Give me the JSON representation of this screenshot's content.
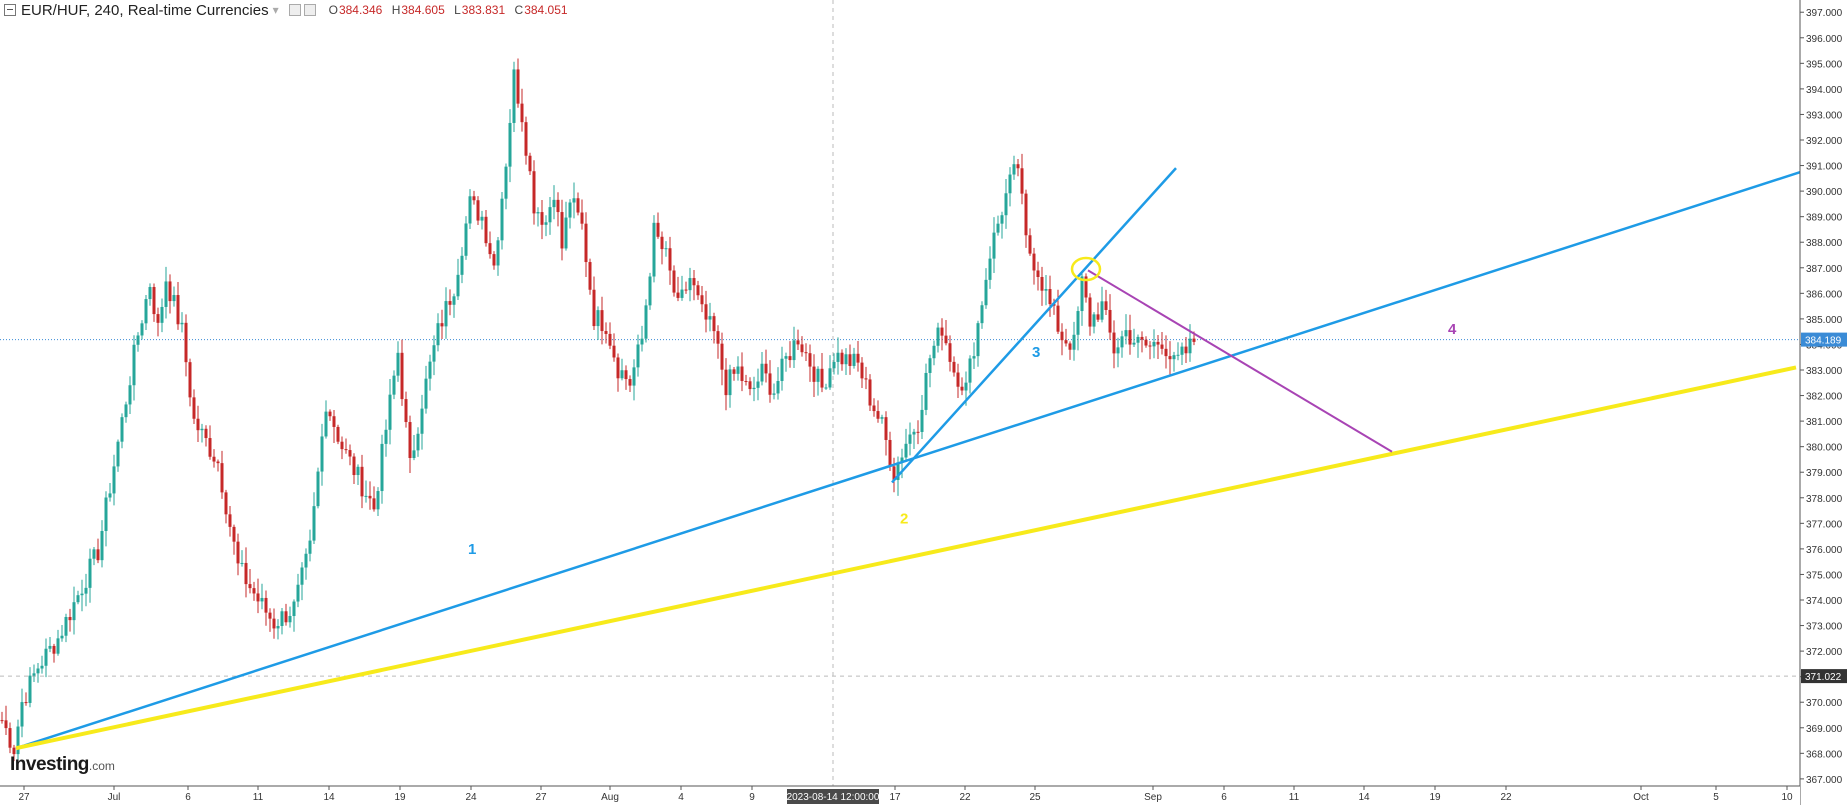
{
  "header": {
    "symbol_line": "EUR/HUF, 240, Real-time Currencies",
    "open_label": "O",
    "open": "384.346",
    "high_label": "H",
    "high": "384.605",
    "low_label": "L",
    "low": "383.831",
    "close_label": "C",
    "close": "384.051"
  },
  "logo": {
    "name": "Investing",
    "suffix": ".com"
  },
  "colors": {
    "up": "#26a69a",
    "down": "#c62828",
    "blue_line": "#1e9be6",
    "yellow_line": "#f7ea1b",
    "purple_line": "#a844b4",
    "price_tag": "#3a8bd6",
    "grid_dash": "#bbbbbb"
  },
  "chart_data": {
    "type": "candlestick",
    "interval": "240",
    "x_axis_labels": [
      "27",
      "Jul",
      "6",
      "11",
      "14",
      "19",
      "24",
      "27",
      "Aug",
      "4",
      "9",
      "2023-08-14 12:00:00",
      "17",
      "22",
      "25",
      "Sep",
      "6",
      "11",
      "14",
      "19",
      "22",
      "Oct",
      "5",
      "10"
    ],
    "y_axis": {
      "ticks": [
        "367.000",
        "368.000",
        "369.000",
        "370.000",
        "371.000",
        "372.000",
        "373.000",
        "374.000",
        "375.000",
        "376.000",
        "377.000",
        "378.000",
        "379.000",
        "380.000",
        "381.000",
        "382.000",
        "383.000",
        "384.000",
        "385.000",
        "386.000",
        "387.000",
        "388.000",
        "389.000",
        "390.000",
        "391.000",
        "392.000",
        "393.000",
        "394.000",
        "395.000",
        "396.000",
        "397.000"
      ],
      "range": [
        366.8,
        397.4
      ]
    },
    "current_price": "384.189",
    "marked_price": "371.022",
    "crosshair_date": "2023-08-14 12:00:00",
    "path_points": [
      {
        "d": 0,
        "p": 369.3
      },
      {
        "d": 3,
        "p": 368.2
      },
      {
        "d": 5,
        "p": 370.0
      },
      {
        "d": 9,
        "p": 371.4
      },
      {
        "d": 14,
        "p": 372.5
      },
      {
        "d": 19,
        "p": 374.2
      },
      {
        "d": 24,
        "p": 375.9
      },
      {
        "d": 30,
        "p": 381.0
      },
      {
        "d": 34,
        "p": 384.4
      },
      {
        "d": 37,
        "p": 386.4
      },
      {
        "d": 39,
        "p": 384.6
      },
      {
        "d": 41,
        "p": 386.6
      },
      {
        "d": 45,
        "p": 384.5
      },
      {
        "d": 48,
        "p": 381.0
      },
      {
        "d": 54,
        "p": 379.4
      },
      {
        "d": 59,
        "p": 375.3
      },
      {
        "d": 64,
        "p": 374.0
      },
      {
        "d": 68,
        "p": 373.1
      },
      {
        "d": 73,
        "p": 373.7
      },
      {
        "d": 77,
        "p": 376.0
      },
      {
        "d": 81,
        "p": 381.8
      },
      {
        "d": 85,
        "p": 380.0
      },
      {
        "d": 89,
        "p": 378.8
      },
      {
        "d": 93,
        "p": 377.6
      },
      {
        "d": 96,
        "p": 380.7
      },
      {
        "d": 99,
        "p": 383.7
      },
      {
        "d": 102,
        "p": 379.2
      },
      {
        "d": 105,
        "p": 381.8
      },
      {
        "d": 109,
        "p": 384.5
      },
      {
        "d": 113,
        "p": 386.3
      },
      {
        "d": 117,
        "p": 389.5
      },
      {
        "d": 120,
        "p": 389.0
      },
      {
        "d": 123,
        "p": 387.1
      },
      {
        "d": 126,
        "p": 391.2
      },
      {
        "d": 128,
        "p": 394.5
      },
      {
        "d": 130,
        "p": 393.0
      },
      {
        "d": 133,
        "p": 389.5
      },
      {
        "d": 136,
        "p": 388.8
      },
      {
        "d": 138,
        "p": 390.1
      },
      {
        "d": 140,
        "p": 387.8
      },
      {
        "d": 142,
        "p": 389.7
      },
      {
        "d": 145,
        "p": 388.6
      },
      {
        "d": 148,
        "p": 385.1
      },
      {
        "d": 151,
        "p": 384.8
      },
      {
        "d": 154,
        "p": 383.1
      },
      {
        "d": 157,
        "p": 382.5
      },
      {
        "d": 160,
        "p": 384.2
      },
      {
        "d": 163,
        "p": 388.4
      },
      {
        "d": 166,
        "p": 387.4
      },
      {
        "d": 169,
        "p": 385.4
      },
      {
        "d": 172,
        "p": 386.6
      },
      {
        "d": 175,
        "p": 385.2
      },
      {
        "d": 178,
        "p": 384.4
      },
      {
        "d": 181,
        "p": 382.4
      },
      {
        "d": 184,
        "p": 383.0
      },
      {
        "d": 187,
        "p": 382.0
      },
      {
        "d": 190,
        "p": 382.9
      },
      {
        "d": 193,
        "p": 382.2
      },
      {
        "d": 196,
        "p": 383.4
      },
      {
        "d": 199,
        "p": 384.3
      },
      {
        "d": 202,
        "p": 383.3
      },
      {
        "d": 205,
        "p": 382.3
      },
      {
        "d": 208,
        "p": 383.6
      },
      {
        "d": 211,
        "p": 383.4
      },
      {
        "d": 214,
        "p": 383.2
      },
      {
        "d": 217,
        "p": 381.9
      },
      {
        "d": 220,
        "p": 380.8
      },
      {
        "d": 223,
        "p": 379.0
      },
      {
        "d": 226,
        "p": 380.2
      },
      {
        "d": 229,
        "p": 381.0
      },
      {
        "d": 232,
        "p": 383.5
      },
      {
        "d": 235,
        "p": 384.7
      },
      {
        "d": 238,
        "p": 383.0
      },
      {
        "d": 241,
        "p": 382.3
      },
      {
        "d": 244,
        "p": 384.8
      },
      {
        "d": 247,
        "p": 387.6
      },
      {
        "d": 250,
        "p": 389.3
      },
      {
        "d": 252,
        "p": 390.3
      },
      {
        "d": 254,
        "p": 391.0
      },
      {
        "d": 256,
        "p": 388.0
      },
      {
        "d": 259,
        "p": 386.9
      },
      {
        "d": 262,
        "p": 385.5
      },
      {
        "d": 265,
        "p": 384.3
      },
      {
        "d": 268,
        "p": 384.0
      },
      {
        "d": 270,
        "p": 386.4
      },
      {
        "d": 272,
        "p": 384.9
      },
      {
        "d": 275,
        "p": 385.5
      },
      {
        "d": 278,
        "p": 383.8
      },
      {
        "d": 281,
        "p": 384.5
      },
      {
        "d": 284,
        "p": 384.0
      },
      {
        "d": 287,
        "p": 383.9
      },
      {
        "d": 290,
        "p": 384.2
      },
      {
        "d": 293,
        "p": 383.2
      },
      {
        "d": 296,
        "p": 383.7
      },
      {
        "d": 298,
        "p": 384.1
      }
    ],
    "annotations": [
      {
        "label": "1",
        "color": "blue_line",
        "kind": "trendline",
        "from": {
          "d": 4,
          "p": 368.2
        },
        "to": {
          "d": 465,
          "p": 391.5
        }
      },
      {
        "label": "2",
        "color": "yellow_line",
        "kind": "trendline",
        "from": {
          "d": 4,
          "p": 368.2
        },
        "to": {
          "d": 449,
          "p": 383.1
        }
      },
      {
        "label": "3",
        "color": "blue_line",
        "kind": "trendline",
        "from": {
          "d": 223,
          "p": 378.6
        },
        "to": {
          "d": 294,
          "p": 390.9
        }
      },
      {
        "label": "4",
        "color": "purple_line",
        "kind": "trendline",
        "from": {
          "d": 272,
          "p": 386.9
        },
        "to": {
          "d": 348,
          "p": 379.8
        }
      }
    ],
    "highlight_ellipse": {
      "color": "yellow_line",
      "d": 271,
      "p": 386.95
    }
  }
}
